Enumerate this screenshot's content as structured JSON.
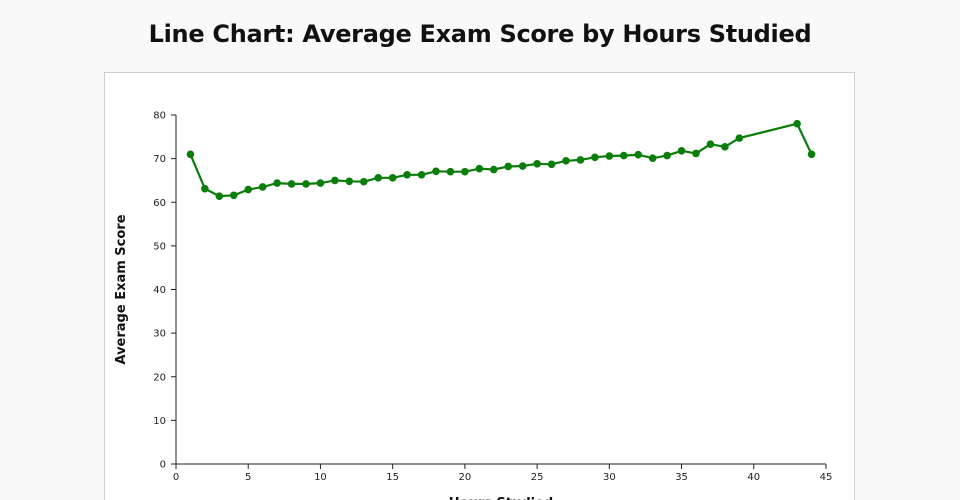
{
  "title": "Line Chart: Average Exam Score by Hours Studied",
  "chart_data": {
    "type": "line",
    "title": "Line Chart: Average Exam Score by Hours Studied",
    "xlabel": "Hours Studied",
    "ylabel": "Average Exam Score",
    "xlim": [
      0,
      45
    ],
    "ylim": [
      0,
      80
    ],
    "x_ticks": [
      "0",
      "5",
      "10",
      "15",
      "20",
      "25",
      "30",
      "35",
      "40",
      "45"
    ],
    "y_ticks": [
      "0",
      "10",
      "20",
      "30",
      "40",
      "50",
      "60",
      "70",
      "80"
    ],
    "grid": false,
    "series": [
      {
        "color": "#0a7d0a",
        "x": [
          1,
          2,
          3,
          4,
          5,
          6,
          7,
          8,
          9,
          10,
          11,
          12,
          13,
          14,
          15,
          16,
          17,
          18,
          19,
          20,
          21,
          22,
          23,
          24,
          25,
          26,
          27,
          28,
          29,
          30,
          31,
          32,
          33,
          34,
          35,
          36,
          37,
          38,
          39,
          43,
          44
        ],
        "y": [
          71.0,
          63.1,
          61.4,
          61.6,
          62.9,
          63.5,
          64.4,
          64.2,
          64.2,
          64.4,
          65.0,
          64.8,
          64.7,
          65.6,
          65.6,
          66.3,
          66.3,
          67.1,
          67.0,
          67.0,
          67.7,
          67.5,
          68.2,
          68.3,
          68.8,
          68.7,
          69.5,
          69.7,
          70.3,
          70.6,
          70.7,
          70.9,
          70.1,
          70.7,
          71.8,
          71.2,
          73.3,
          72.7,
          74.7,
          78.0,
          71.0
        ]
      }
    ]
  }
}
